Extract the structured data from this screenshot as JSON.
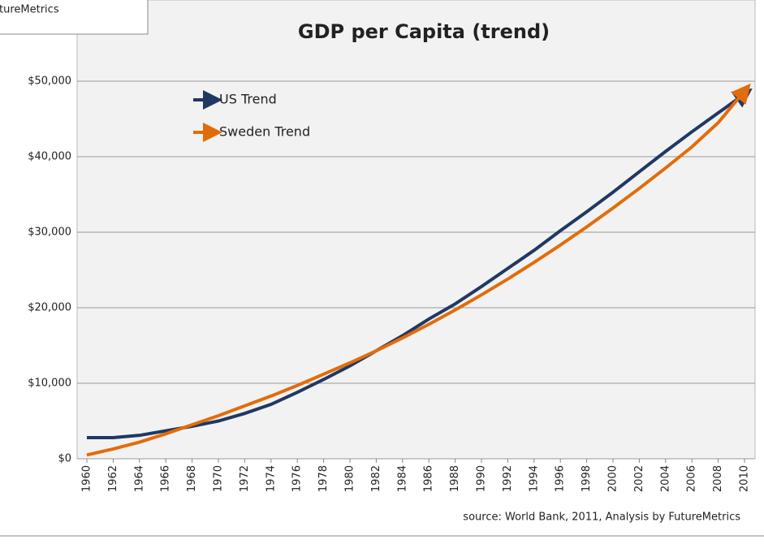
{
  "watermark": "FutureMetrics",
  "chart_data": {
    "type": "line",
    "title": "GDP per Capita (trend)",
    "source": "source: World Bank, 2011, Analysis by FutureMetrics",
    "x": [
      1960,
      1962,
      1964,
      1966,
      1968,
      1970,
      1972,
      1974,
      1976,
      1978,
      1980,
      1982,
      1984,
      1986,
      1988,
      1990,
      1992,
      1994,
      1996,
      1998,
      2000,
      2002,
      2004,
      2006,
      2008,
      2010
    ],
    "xlim": [
      1960,
      2010
    ],
    "xticks": [
      1960,
      1962,
      1964,
      1966,
      1968,
      1970,
      1972,
      1974,
      1976,
      1978,
      1980,
      1982,
      1984,
      1986,
      1988,
      1990,
      1992,
      1994,
      1996,
      1998,
      2000,
      2002,
      2004,
      2006,
      2008,
      2010
    ],
    "ylim": [
      0,
      60000
    ],
    "yticks": [
      {
        "value": 0,
        "label": "$0"
      },
      {
        "value": 10000,
        "label": "$10,000"
      },
      {
        "value": 20000,
        "label": "$20,000"
      },
      {
        "value": 30000,
        "label": "$30,000"
      },
      {
        "value": 40000,
        "label": "$40,000"
      },
      {
        "value": 50000,
        "label": "$50,000"
      }
    ],
    "grid": true,
    "series": [
      {
        "name": "US Trend",
        "color": "#1f3864",
        "values": [
          2800,
          2800,
          3100,
          3700,
          4300,
          5000,
          6000,
          7200,
          8800,
          10500,
          12300,
          14300,
          16300,
          18500,
          20500,
          22800,
          25200,
          27600,
          30200,
          32700,
          35300,
          38000,
          40700,
          43300,
          45800,
          48300
        ]
      },
      {
        "name": "Sweden Trend",
        "color": "#e36c0a",
        "values": [
          500,
          1300,
          2200,
          3300,
          4500,
          5700,
          7000,
          8300,
          9700,
          11200,
          12700,
          14300,
          16000,
          17800,
          19700,
          21700,
          23800,
          26000,
          28300,
          30700,
          33200,
          35800,
          38500,
          41300,
          44500,
          48700
        ]
      }
    ]
  }
}
